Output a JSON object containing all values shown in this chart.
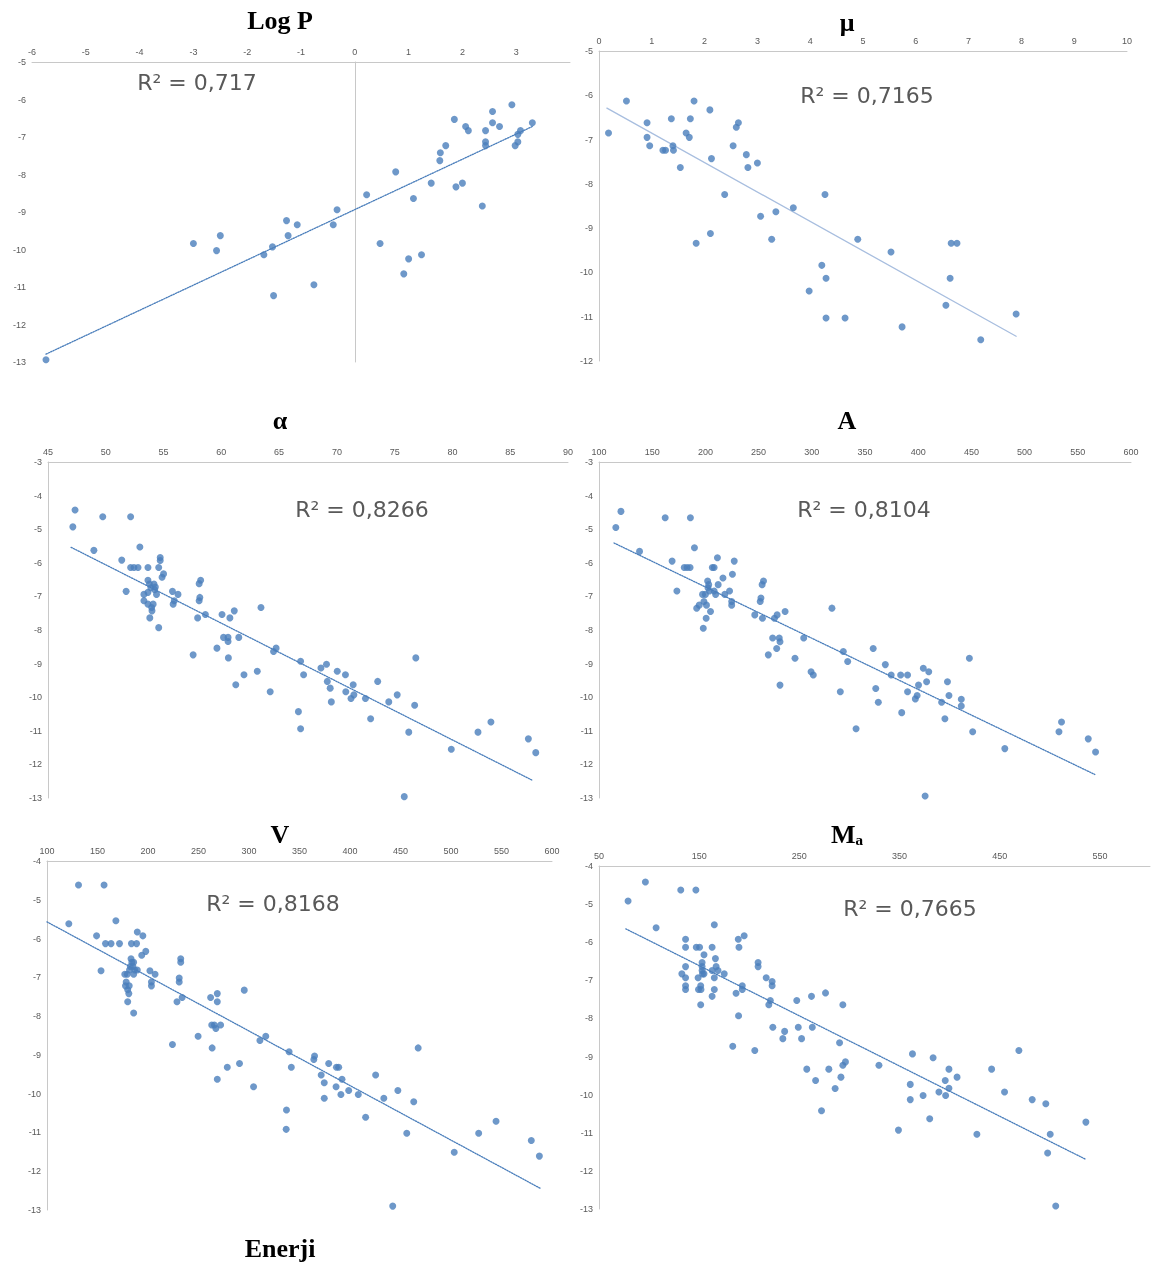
{
  "chart_data": [
    {
      "type": "scatter",
      "title": "Log P",
      "annotations": [
        "R² = 0,717"
      ],
      "xlim": [
        -6,
        4
      ],
      "xticks": [
        -6,
        -5,
        -4,
        -3,
        -2,
        -1,
        0,
        1,
        2,
        3
      ],
      "ylim": [
        -13,
        -5
      ],
      "yticks": [
        -13,
        -12,
        -11,
        -10,
        -9,
        -8,
        -7,
        -6,
        -5
      ],
      "series": [
        {
          "type": "scatter",
          "marker": "circle",
          "color": "#4a7ebb",
          "x": [
            -5.74,
            -3.0,
            -2.57,
            -2.5,
            -1.69,
            -1.53,
            -1.51,
            -1.27,
            -1.24,
            -1.07,
            -0.76,
            -0.4,
            -0.33,
            0.22,
            0.47,
            0.76,
            0.91,
            1.0,
            1.09,
            1.24,
            1.42,
            1.58,
            1.59,
            1.69,
            1.85,
            1.88,
            2.0,
            2.06,
            2.11,
            2.37,
            2.43,
            2.43,
            2.43,
            2.56,
            2.56,
            2.69,
            2.92,
            2.98,
            3.03,
            3.03,
            3.08,
            3.3
          ],
          "values": [
            -12.94,
            -9.84,
            -10.03,
            -9.63,
            -10.14,
            -9.93,
            -11.23,
            -9.23,
            -9.63,
            -9.34,
            -10.94,
            -9.34,
            -8.94,
            -8.54,
            -9.84,
            -7.93,
            -10.65,
            -10.25,
            -8.64,
            -10.14,
            -8.23,
            -7.63,
            -7.42,
            -7.23,
            -6.53,
            -8.33,
            -8.23,
            -6.72,
            -6.83,
            -8.84,
            -6.83,
            -7.13,
            -7.23,
            -6.32,
            -6.62,
            -6.72,
            -6.14,
            -7.23,
            -7.13,
            -6.93,
            -6.83,
            -6.62
          ]
        },
        {
          "type": "line",
          "marker": "none",
          "line_style": "dotted",
          "color": "#4a7ebb",
          "x": [
            -5.74,
            3.3
          ],
          "values": [
            -12.79,
            -6.72
          ]
        }
      ]
    },
    {
      "type": "scatter",
      "title": "μ",
      "annotations": [
        "R² = 0,7165"
      ],
      "xlim": [
        0,
        10
      ],
      "xticks": [
        0,
        1,
        2,
        3,
        4,
        5,
        6,
        7,
        8,
        9,
        10
      ],
      "ylim": [
        -12,
        -5
      ],
      "yticks": [
        -12,
        -11,
        -10,
        -9,
        -8,
        -7,
        -6,
        -5
      ],
      "series": [
        {
          "type": "scatter",
          "marker": "circle",
          "color": "#4a7ebb",
          "x": [
            0.18,
            0.52,
            0.91,
            0.91,
            0.96,
            1.21,
            1.26,
            1.37,
            1.4,
            1.41,
            1.54,
            1.65,
            1.71,
            1.73,
            1.8,
            1.84,
            2.1,
            2.11,
            2.13,
            2.38,
            2.54,
            2.6,
            2.64,
            2.79,
            2.82,
            3.0,
            3.06,
            3.27,
            3.35,
            3.68,
            3.98,
            4.22,
            4.28,
            4.3,
            4.3,
            4.66,
            4.9,
            5.53,
            5.74,
            6.57,
            6.65,
            6.67,
            6.78,
            7.23,
            7.9
          ],
          "values": [
            -6.85,
            -6.13,
            -6.62,
            -6.95,
            -7.14,
            -7.24,
            -7.24,
            -6.53,
            -7.14,
            -7.24,
            -7.63,
            -6.85,
            -6.95,
            -6.53,
            -6.13,
            -9.34,
            -6.33,
            -9.12,
            -7.43,
            -8.24,
            -7.14,
            -6.72,
            -6.62,
            -7.34,
            -7.63,
            -7.53,
            -8.73,
            -9.25,
            -8.63,
            -8.54,
            -10.42,
            -9.84,
            -8.24,
            -10.13,
            -11.03,
            -11.03,
            -9.25,
            -9.54,
            -11.23,
            -10.74,
            -10.13,
            -9.34,
            -9.34,
            -11.52,
            -10.94
          ]
        },
        {
          "type": "line",
          "marker": "none",
          "line_style": "solid",
          "color": "#a8bedf",
          "x": [
            0.15,
            7.9
          ],
          "values": [
            -6.29,
            -11.44
          ]
        }
      ]
    },
    {
      "type": "scatter",
      "title": "α",
      "annotations": [
        "R² = 0,8266"
      ],
      "xlim": [
        45,
        90
      ],
      "xticks": [
        45,
        50,
        55,
        60,
        65,
        70,
        75,
        80,
        85,
        90
      ],
      "ylim": [
        -13,
        -3
      ],
      "yticks": [
        -13,
        -12,
        -11,
        -10,
        -9,
        -8,
        -7,
        -6,
        -5,
        -4,
        -3
      ],
      "series": [
        {
          "type": "scatter",
          "marker": "circle",
          "color": "#4a7ebb",
          "x": [
            47.15,
            47.34,
            48.97,
            49.74,
            51.38,
            51.76,
            52.15,
            52.15,
            52.44,
            52.79,
            52.95,
            53.3,
            53.3,
            53.65,
            53.65,
            53.65,
            53.65,
            53.78,
            53.81,
            53.9,
            53.97,
            54.0,
            54.1,
            54.17,
            54.23,
            54.29,
            54.39,
            54.58,
            54.58,
            54.71,
            54.71,
            54.87,
            55.0,
            55.77,
            55.83,
            55.93,
            56.25,
            57.56,
            57.95,
            58.08,
            58.08,
            58.14,
            58.21,
            58.62,
            59.62,
            60.06,
            60.19,
            60.58,
            60.58,
            60.61,
            60.74,
            61.12,
            61.25,
            61.51,
            61.96,
            63.11,
            63.43,
            64.23,
            64.52,
            64.74,
            66.67,
            66.86,
            66.86,
            67.12,
            68.62,
            69.1,
            69.17,
            69.42,
            69.52,
            70.03,
            70.74,
            70.77,
            71.22,
            71.41,
            71.47,
            72.47,
            72.92,
            73.53,
            74.49,
            75.22,
            75.83,
            76.22,
            76.73,
            76.83,
            79.9,
            82.21,
            83.33,
            86.57,
            87.21
          ],
          "values": [
            -4.93,
            -4.43,
            -5.63,
            -4.63,
            -5.92,
            -6.85,
            -4.63,
            -6.14,
            -6.14,
            -6.14,
            -5.53,
            -6.94,
            -7.13,
            -6.14,
            -6.52,
            -6.88,
            -7.23,
            -6.63,
            -7.64,
            -6.74,
            -7.33,
            -7.43,
            -7.23,
            -6.63,
            -6.8,
            -6.72,
            -6.94,
            -7.93,
            -6.14,
            -5.84,
            -5.93,
            -6.43,
            -6.33,
            -6.85,
            -7.23,
            -7.13,
            -6.94,
            -8.74,
            -7.64,
            -7.13,
            -6.62,
            -7.03,
            -6.52,
            -7.54,
            -8.54,
            -7.54,
            -8.22,
            -8.22,
            -8.34,
            -8.83,
            -7.64,
            -7.43,
            -9.63,
            -8.22,
            -9.33,
            -9.23,
            -7.33,
            -9.84,
            -8.64,
            -8.54,
            -10.43,
            -8.93,
            -10.94,
            -9.33,
            -9.13,
            -9.02,
            -9.53,
            -9.73,
            -10.14,
            -9.23,
            -9.33,
            -9.84,
            -10.04,
            -9.63,
            -9.93,
            -10.04,
            -10.64,
            -9.53,
            -10.14,
            -9.93,
            -12.96,
            -11.04,
            -10.24,
            -8.83,
            -11.55,
            -11.04,
            -10.74,
            -11.24,
            -11.65
          ]
        },
        {
          "type": "line",
          "marker": "none",
          "line_style": "dotted",
          "color": "#4a7ebb",
          "x": [
            47.0,
            86.9
          ],
          "values": [
            -5.54,
            -12.47
          ]
        }
      ]
    },
    {
      "type": "scatter",
      "title": "A",
      "annotations": [
        "R² = 0,8104"
      ],
      "xlim": [
        100,
        600
      ],
      "xticks": [
        100,
        150,
        200,
        250,
        300,
        350,
        400,
        450,
        500,
        550,
        600
      ],
      "ylim": [
        -13,
        -3
      ],
      "yticks": [
        -13,
        -12,
        -11,
        -10,
        -9,
        -8,
        -7,
        -6,
        -5,
        -4,
        -3
      ],
      "series": [
        {
          "type": "scatter",
          "marker": "circle",
          "color": "#4a7ebb",
          "x": [
            115.8,
            120.6,
            138.1,
            162.2,
            168.7,
            173.2,
            180.1,
            182.8,
            185.6,
            185.9,
            189.7,
            191.8,
            194.2,
            197.3,
            198.0,
            198.6,
            200.0,
            200.7,
            201.0,
            202.1,
            202.4,
            203.1,
            203.8,
            204.8,
            206.5,
            208.2,
            208.2,
            209.6,
            211.3,
            212.0,
            216.5,
            218.2,
            222.7,
            224.7,
            224.7,
            225.4,
            227.1,
            246.4,
            251.5,
            252.2,
            253.3,
            253.6,
            254.6,
            259.1,
            263.2,
            264.9,
            267.0,
            267.4,
            269.4,
            270.1,
            270.1,
            274.9,
            284.2,
            292.4,
            299.3,
            301.4,
            318.9,
            326.8,
            329.6,
            333.7,
            341.6,
            357.7,
            360.1,
            362.5,
            369.1,
            374.6,
            383.5,
            384.5,
            390.0,
            390.0,
            397.3,
            399.0,
            400.3,
            404.8,
            406.5,
            407.9,
            409.9,
            422.0,
            425.1,
            427.5,
            428.9,
            440.5,
            440.5,
            448.1,
            451.2,
            481.4,
            532.3,
            534.7,
            559.8,
            566.7
          ],
          "values": [
            -4.95,
            -4.47,
            -5.66,
            -4.66,
            -5.95,
            -6.84,
            -6.14,
            -6.14,
            -6.14,
            -4.66,
            -5.55,
            -7.35,
            -7.26,
            -6.94,
            -7.95,
            -7.15,
            -6.94,
            -7.65,
            -7.26,
            -6.54,
            -6.74,
            -6.65,
            -6.84,
            -7.45,
            -6.14,
            -6.14,
            -6.84,
            -6.94,
            -5.85,
            -6.65,
            -6.45,
            -6.94,
            -6.84,
            -7.15,
            -7.26,
            -6.34,
            -5.95,
            -7.55,
            -7.15,
            -7.05,
            -6.65,
            -7.65,
            -6.54,
            -8.74,
            -8.24,
            -7.65,
            -8.55,
            -7.55,
            -8.24,
            -8.35,
            -9.64,
            -7.45,
            -8.84,
            -8.24,
            -9.24,
            -9.34,
            -7.35,
            -9.84,
            -8.64,
            -8.94,
            -10.94,
            -8.55,
            -9.74,
            -10.15,
            -9.03,
            -9.34,
            -9.34,
            -10.46,
            -9.34,
            -9.84,
            -10.05,
            -9.95,
            -9.64,
            -9.14,
            -12.94,
            -9.54,
            -9.24,
            -10.15,
            -10.64,
            -9.54,
            -9.95,
            -10.06,
            -10.26,
            -8.84,
            -11.03,
            -11.53,
            -11.03,
            -10.74,
            -11.24,
            -11.63
          ]
        },
        {
          "type": "line",
          "marker": "none",
          "line_style": "dotted",
          "color": "#4a7ebb",
          "x": [
            114.1,
            566
          ],
          "values": [
            -5.41,
            -12.3
          ]
        }
      ]
    },
    {
      "type": "scatter",
      "title": "V",
      "annotations": [
        "R² = 0,8168",
        "Enerji"
      ],
      "xlim": [
        100,
        600
      ],
      "xticks": [
        100,
        150,
        200,
        250,
        300,
        350,
        400,
        450,
        500,
        550,
        600
      ],
      "ylim": [
        -13,
        -4
      ],
      "yticks": [
        -13,
        -12,
        -11,
        -10,
        -9,
        -8,
        -7,
        -6,
        -5,
        -4
      ],
      "series": [
        {
          "type": "scatter",
          "marker": "circle",
          "color": "#4a7ebb",
          "x": [
            121.6,
            131.2,
            149.1,
            153.5,
            156.5,
            157.9,
            163.4,
            168.2,
            171.8,
            177.0,
            177.7,
            178.4,
            179.5,
            179.9,
            179.9,
            181.0,
            181.4,
            181.7,
            182.5,
            183.2,
            183.6,
            184.0,
            185.1,
            185.8,
            185.8,
            185.8,
            186.9,
            188.7,
            189.4,
            189.4,
            193.8,
            194.9,
            197.8,
            201.9,
            203.4,
            203.4,
            207.0,
            224.2,
            228.7,
            230.9,
            230.9,
            232.4,
            232.4,
            233.8,
            249.6,
            262.0,
            263.1,
            263.5,
            265.7,
            267.2,
            268.6,
            268.6,
            268.6,
            271.9,
            278.5,
            290.6,
            295.3,
            304.5,
            310.8,
            316.6,
            337.1,
            336.8,
            339.7,
            341.9,
            364.2,
            364.9,
            371.5,
            374.5,
            374.5,
            378.9,
            386.2,
            386.6,
            388.8,
            391.0,
            392.1,
            398.7,
            408.2,
            415.5,
            425.4,
            433.5,
            442.3,
            447.4,
            456.2,
            463.1,
            467.5,
            503.2,
            527.4,
            544.6,
            579.5,
            587.5
          ],
          "values": [
            -5.62,
            -4.62,
            -5.93,
            -6.83,
            -4.62,
            -6.13,
            -6.13,
            -5.54,
            -6.13,
            -6.92,
            -7.22,
            -7.12,
            -6.92,
            -7.63,
            -7.32,
            -7.42,
            -7.22,
            -6.81,
            -6.72,
            -6.52,
            -6.13,
            -6.61,
            -6.72,
            -6.61,
            -6.92,
            -7.92,
            -6.81,
            -6.13,
            -5.83,
            -6.81,
            -6.43,
            -5.93,
            -6.33,
            -6.83,
            -7.12,
            -7.22,
            -6.92,
            -8.73,
            -7.63,
            -7.02,
            -7.12,
            -6.52,
            -6.61,
            -7.52,
            -8.52,
            -7.52,
            -8.23,
            -8.82,
            -8.23,
            -8.32,
            -7.63,
            -7.42,
            -9.63,
            -8.23,
            -9.32,
            -9.22,
            -7.33,
            -9.82,
            -8.63,
            -8.52,
            -10.42,
            -10.92,
            -8.92,
            -9.32,
            -9.12,
            -9.03,
            -9.52,
            -9.72,
            -10.12,
            -9.22,
            -9.82,
            -9.32,
            -9.32,
            -10.02,
            -9.63,
            -9.92,
            -10.02,
            -10.61,
            -9.52,
            -10.12,
            -12.9,
            -9.92,
            -11.02,
            -10.21,
            -8.82,
            -11.51,
            -11.02,
            -10.71,
            -11.21,
            -11.61
          ]
        },
        {
          "type": "line",
          "marker": "none",
          "line_style": "dotted",
          "color": "#4a7ebb",
          "x": [
            100,
            588.3
          ],
          "values": [
            -5.57,
            -12.44
          ]
        }
      ]
    },
    {
      "type": "scatter",
      "title": "Mₐ",
      "annotations": [
        "R² = 0,7665"
      ],
      "xlim": [
        50,
        600
      ],
      "xticks": [
        50,
        150,
        250,
        350,
        450,
        550
      ],
      "ylim": [
        -13,
        -4
      ],
      "yticks": [
        -13,
        -12,
        -11,
        -10,
        -9,
        -8,
        -7,
        -6,
        -5,
        -4
      ],
      "series": [
        {
          "type": "scatter",
          "marker": "circle",
          "color": "#4a7ebb",
          "x": [
            79.0,
            96.3,
            107.0,
            131.6,
            132.7,
            136.4,
            136.4,
            136.4,
            136.4,
            136.4,
            136.4,
            146.7,
            147.1,
            148.9,
            149.3,
            150.4,
            151.5,
            151.5,
            151.8,
            152.9,
            152.9,
            152.9,
            153.3,
            154.8,
            154.8,
            162.9,
            162.9,
            162.9,
            165.1,
            165.1,
            165.1,
            166.2,
            166.9,
            168.8,
            175.0,
            183.5,
            186.8,
            189.0,
            189.3,
            189.7,
            193.0,
            193.0,
            194.9,
            205.5,
            208.8,
            208.8,
            216.9,
            219.5,
            221.0,
            222.8,
            222.8,
            223.5,
            233.5,
            235.3,
            247.4,
            248.9,
            252.2,
            257.4,
            262.1,
            262.9,
            266.2,
            272.1,
            276.1,
            279.4,
            285.7,
            290.1,
            291.5,
            293.4,
            293.4,
            296.0,
            329.4,
            348.9,
            360.7,
            360.7,
            362.9,
            373.5,
            380.1,
            383.5,
            389.3,
            395.6,
            396.0,
            399.3,
            399.3,
            407.4,
            427.2,
            441.9,
            454.8,
            469.1,
            482.4,
            496.0,
            497.8,
            500.4,
            505.9,
            536.0
          ],
          "values": [
            -4.92,
            -4.42,
            -5.62,
            -4.63,
            -6.83,
            -5.92,
            -6.13,
            -6.64,
            -6.93,
            -7.14,
            -7.24,
            -4.63,
            -6.13,
            -6.93,
            -7.24,
            -6.13,
            -7.14,
            -7.64,
            -7.24,
            -6.53,
            -6.64,
            -6.74,
            -6.83,
            -6.33,
            -6.83,
            -6.13,
            -6.74,
            -7.42,
            -5.54,
            -6.93,
            -7.24,
            -6.43,
            -6.64,
            -6.74,
            -6.83,
            -8.73,
            -7.34,
            -5.92,
            -7.93,
            -6.13,
            -7.14,
            -7.24,
            -5.83,
            -8.84,
            -6.53,
            -6.64,
            -6.93,
            -7.64,
            -7.53,
            -7.03,
            -7.14,
            -8.23,
            -8.53,
            -8.34,
            -7.53,
            -8.23,
            -8.53,
            -9.33,
            -7.42,
            -8.23,
            -9.63,
            -10.42,
            -7.33,
            -9.33,
            -9.84,
            -8.64,
            -9.54,
            -7.64,
            -9.23,
            -9.14,
            -9.23,
            -10.93,
            -9.73,
            -10.13,
            -8.93,
            -10.02,
            -10.63,
            -9.03,
            -9.93,
            -9.63,
            -10.02,
            -9.33,
            -9.83,
            -9.54,
            -11.04,
            -9.33,
            -9.93,
            -8.84,
            -10.13,
            -10.24,
            -11.53,
            -11.04,
            -12.92,
            -10.72
          ]
        },
        {
          "type": "line",
          "marker": "none",
          "line_style": "dotted",
          "color": "#4a7ebb",
          "x": [
            76.8,
            535.3
          ],
          "values": [
            -5.65,
            -11.69
          ]
        }
      ]
    }
  ]
}
